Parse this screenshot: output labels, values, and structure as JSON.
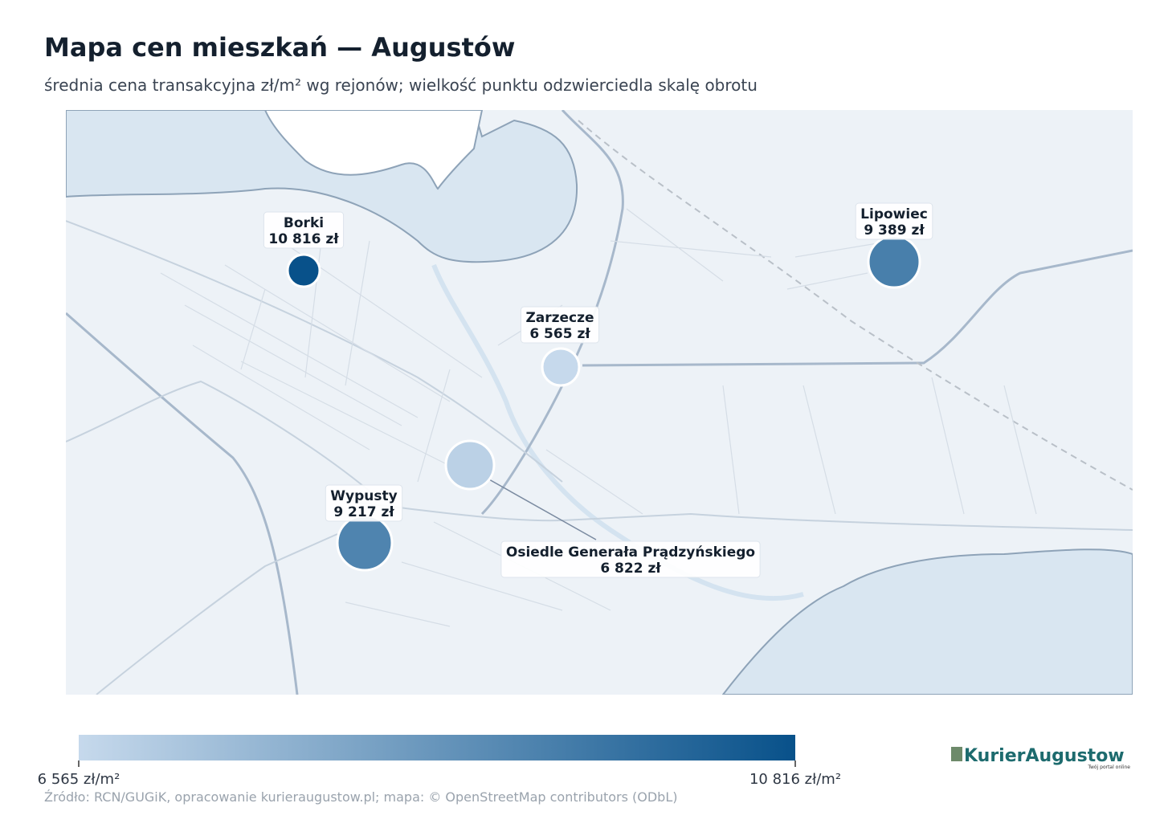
{
  "header": {
    "title": "Mapa cen mieszkań — Augustów",
    "subtitle": "średnia cena transakcyjna zł/m² wg rejonów; wielkość punktu odzwierciedla skalę obrotu"
  },
  "districts": [
    {
      "name": "Borki",
      "value": 10816,
      "label": "10 816 zł",
      "size": 20
    },
    {
      "name": "Zarzecze",
      "value": 6565,
      "label": "6 565 zł",
      "size": 23
    },
    {
      "name": "Osiedle Generała Prądzyńskiego",
      "value": 6822,
      "label": "6 822 zł",
      "size": 30
    },
    {
      "name": "Wypusty",
      "value": 9217,
      "label": "9 217 zł",
      "size": 34
    },
    {
      "name": "Lipowiec",
      "value": 9389,
      "label": "9 389 zł",
      "size": 32
    }
  ],
  "colorbar": {
    "min": {
      "value": 6565,
      "label": "6 565 zł/m²"
    },
    "max": {
      "value": 10816,
      "label": "10 816 zł/m²"
    },
    "colors": [
      "#c6d9ec",
      "#08518a"
    ]
  },
  "footer": {
    "source": "Źródło: RCN/GUGiK, opracowanie kurieraugustow.pl; mapa: © OpenStreetMap contributors (ODbL)",
    "logo": "KurierAugustow",
    "tagline": "Twój portal online"
  }
}
